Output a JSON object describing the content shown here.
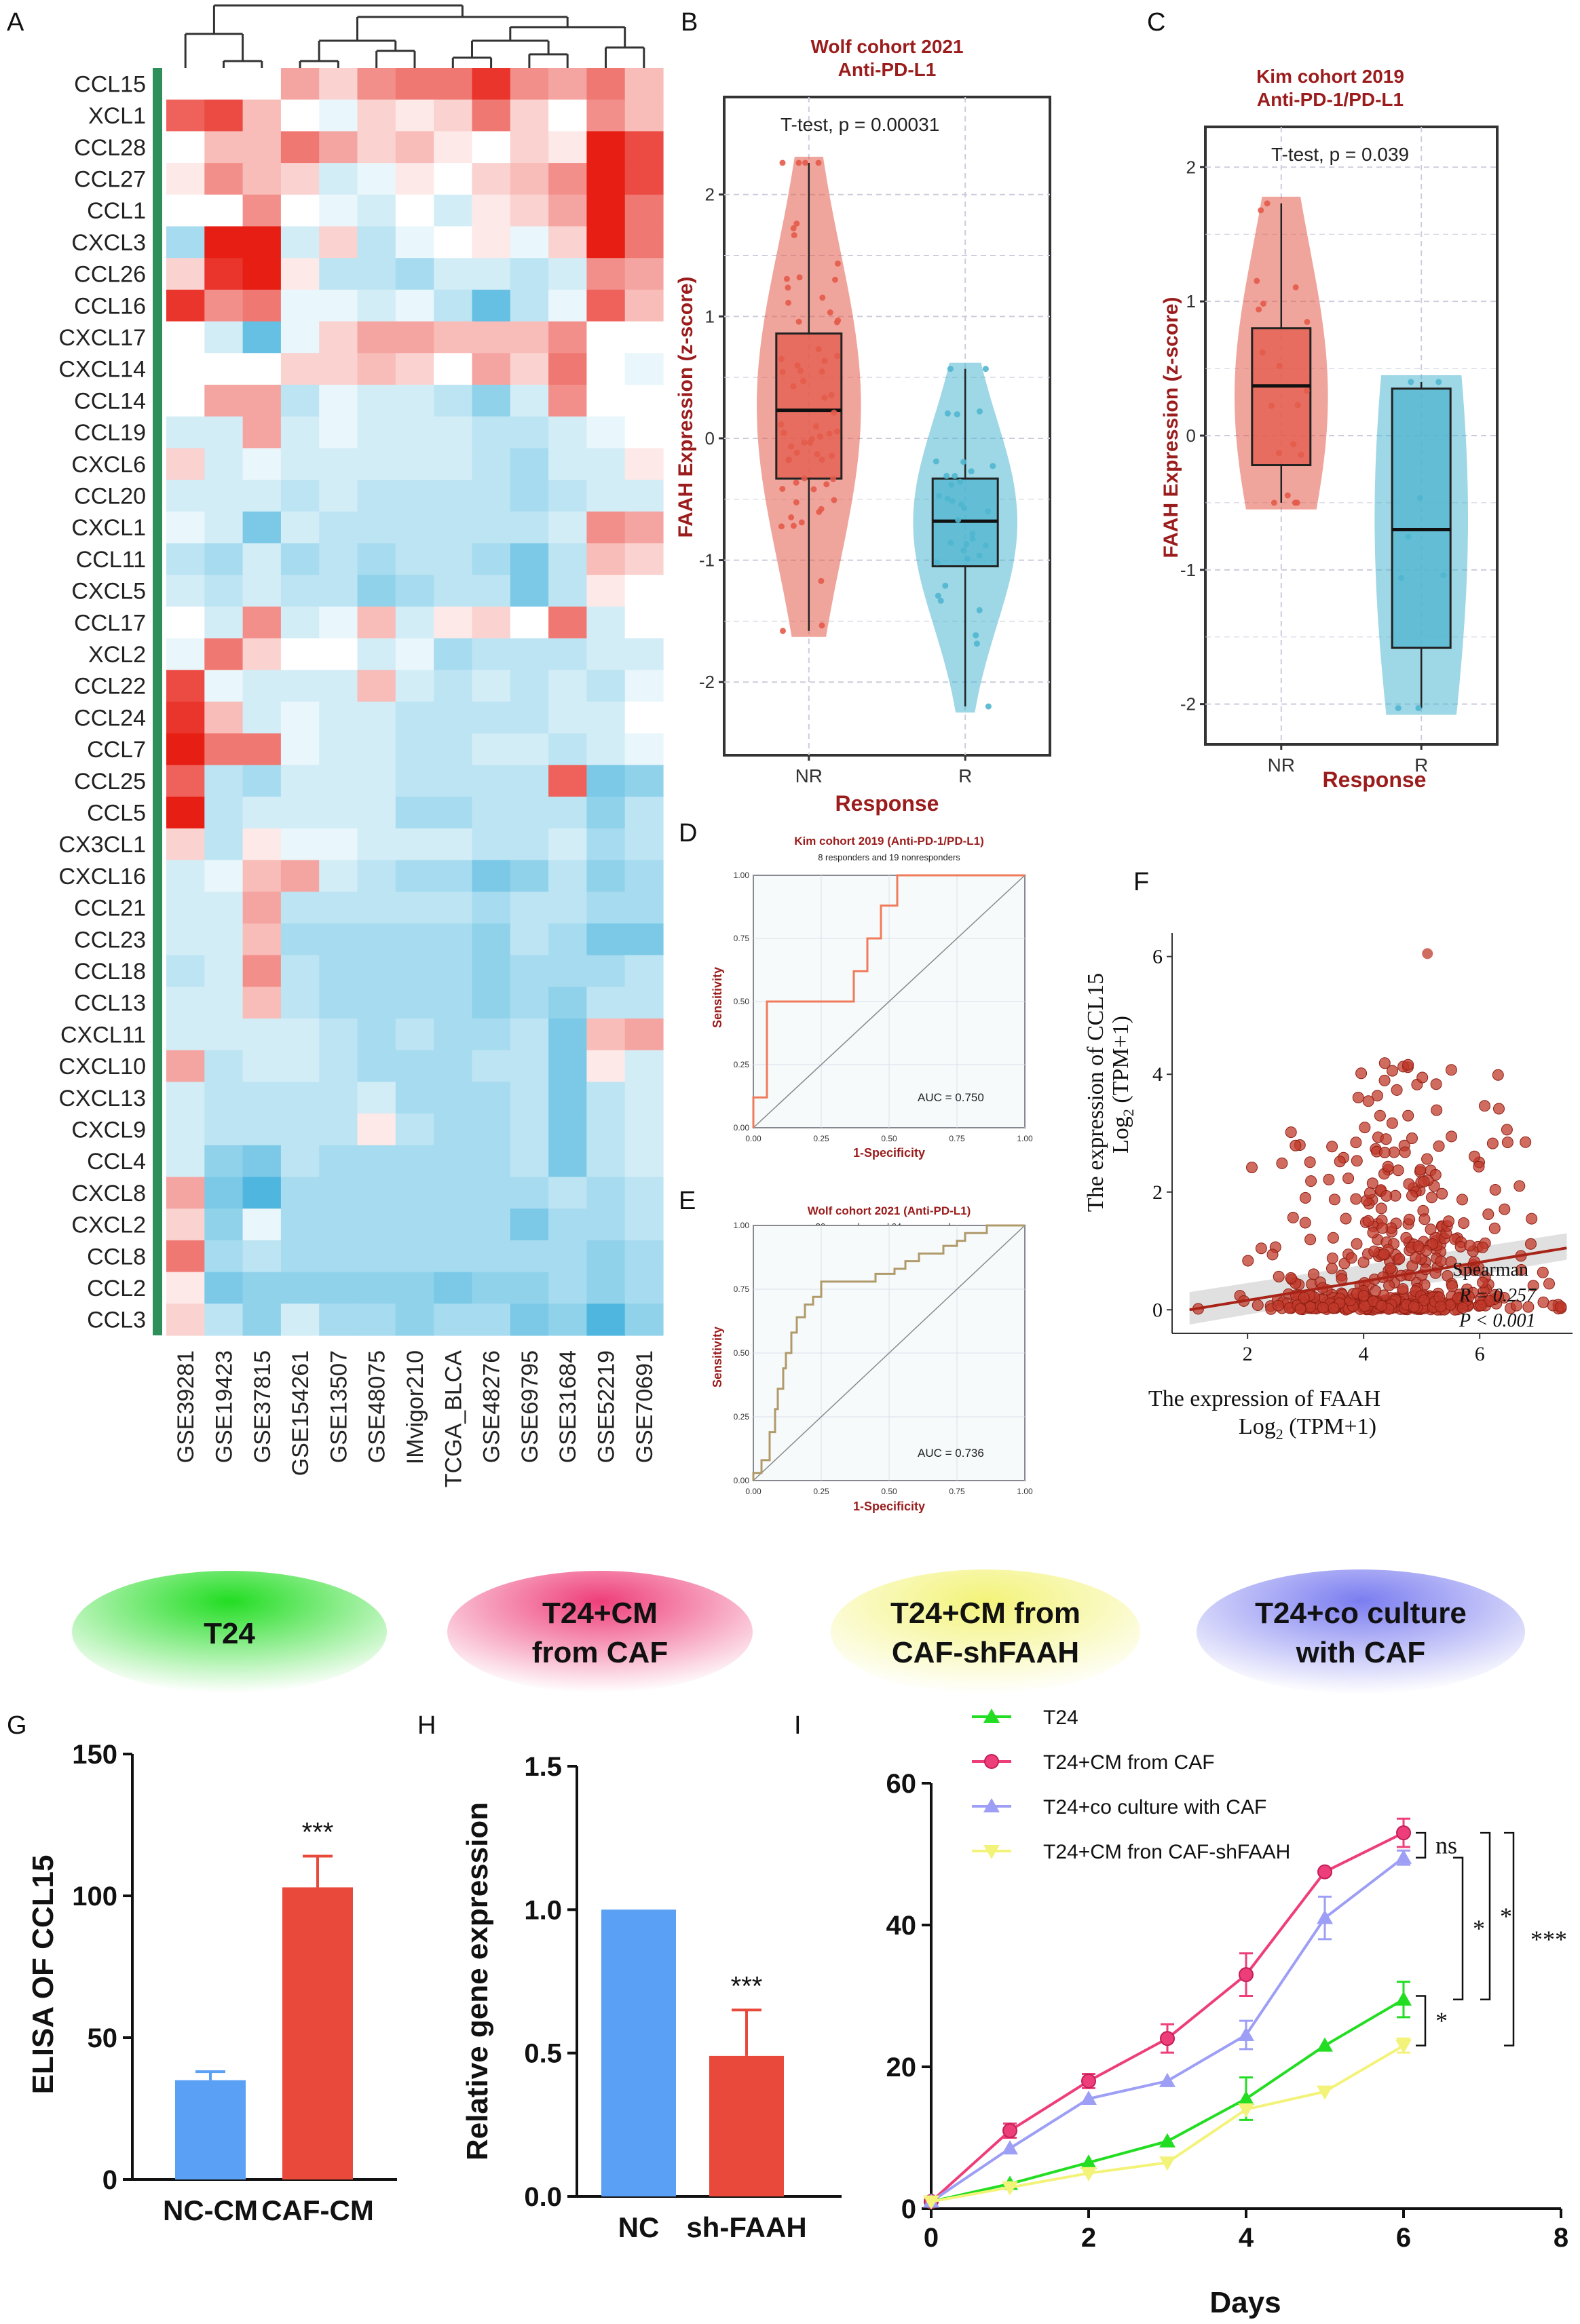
{
  "panel_letters": [
    "A",
    "B",
    "C",
    "D",
    "E",
    "F",
    "G",
    "H",
    "I"
  ],
  "colors": {
    "red": "#e8493a",
    "blue": "#5aa0f5",
    "dark_red": "#9b1c1c",
    "nr": "#e35b4b",
    "r": "#4fb6cf",
    "green": "#22dd22",
    "pink": "#ee3e7a",
    "lavender": "#9d9ef5",
    "yellow": "#f3f37a"
  },
  "heatmap": {
    "rows": [
      "CCL15",
      "XCL1",
      "CCL28",
      "CCL27",
      "CCL1",
      "CXCL3",
      "CCL26",
      "CCL16",
      "CXCL17",
      "CXCL14",
      "CCL14",
      "CCL19",
      "CXCL6",
      "CCL20",
      "CXCL1",
      "CCL11",
      "CXCL5",
      "CCL17",
      "XCL2",
      "CCL22",
      "CCL24",
      "CCL7",
      "CCL25",
      "CCL5",
      "CX3CL1",
      "CXCL16",
      "CCL21",
      "CCL23",
      "CCL18",
      "CCL13",
      "CXCL11",
      "CXCL10",
      "CXCL13",
      "CXCL9",
      "CCL4",
      "CXCL8",
      "CXCL2",
      "CCL8",
      "CCL2",
      "CCL3"
    ],
    "cols": [
      "GSE39281",
      "GSE19423",
      "GSE37815",
      "GSE154261",
      "GSE13507",
      "GSE48075",
      "IMvigor210",
      "TCGA_BLCA",
      "GSE48276",
      "GSE69795",
      "GSE31684",
      "GSE52219",
      "GSE70691"
    ],
    "values": [
      [
        0,
        0,
        0,
        0.4,
        0.2,
        0.5,
        0.6,
        0.6,
        0.9,
        0.5,
        0.4,
        0.6,
        0.3
      ],
      [
        0.7,
        0.8,
        0.3,
        0,
        -0.1,
        0.2,
        0.1,
        0.2,
        0.6,
        0.2,
        0,
        0.5,
        0.3
      ],
      [
        0,
        0.3,
        0.3,
        0.6,
        0.4,
        0.2,
        0.3,
        0.1,
        0,
        0.2,
        0.1,
        1,
        0.8
      ],
      [
        0.1,
        0.5,
        0.3,
        0.2,
        -0.2,
        -0.1,
        0.1,
        0,
        0.2,
        0.3,
        0.5,
        1,
        0.8
      ],
      [
        0,
        0,
        0.5,
        0,
        -0.1,
        -0.2,
        0,
        -0.2,
        0.1,
        0.2,
        0.4,
        1,
        0.6
      ],
      [
        -0.4,
        1,
        1,
        -0.2,
        0.2,
        -0.3,
        -0.1,
        0,
        0.1,
        -0.1,
        0.2,
        1,
        0.6
      ],
      [
        0.2,
        0.9,
        1,
        0.1,
        -0.3,
        -0.3,
        -0.4,
        -0.2,
        -0.2,
        -0.3,
        -0.2,
        0.5,
        0.4
      ],
      [
        0.9,
        0.5,
        0.6,
        -0.1,
        -0.1,
        -0.2,
        -0.1,
        -0.3,
        -0.7,
        -0.3,
        -0.1,
        0.7,
        0.3
      ],
      [
        0,
        -0.2,
        -0.7,
        -0.1,
        0.2,
        0.4,
        0.4,
        0.3,
        0.3,
        0.3,
        0.5,
        0,
        0
      ],
      [
        0,
        0,
        0,
        0.2,
        0.2,
        0.3,
        0.2,
        0,
        0.4,
        0.2,
        0.6,
        0,
        -0.1
      ],
      [
        0,
        0.4,
        0.4,
        -0.3,
        -0.1,
        -0.2,
        -0.2,
        -0.3,
        -0.5,
        -0.2,
        0.5,
        0,
        0
      ],
      [
        -0.2,
        -0.2,
        0.4,
        -0.2,
        -0.1,
        -0.2,
        -0.2,
        -0.2,
        -0.3,
        -0.3,
        -0.2,
        -0.1,
        0
      ],
      [
        0.2,
        -0.2,
        -0.1,
        -0.2,
        -0.2,
        -0.2,
        -0.2,
        -0.2,
        -0.3,
        -0.4,
        -0.2,
        -0.2,
        0.1
      ],
      [
        -0.2,
        -0.2,
        -0.2,
        -0.3,
        -0.2,
        -0.3,
        -0.3,
        -0.3,
        -0.3,
        -0.4,
        -0.3,
        -0.2,
        -0.2
      ],
      [
        -0.1,
        -0.2,
        -0.6,
        -0.2,
        -0.3,
        -0.3,
        -0.3,
        -0.3,
        -0.3,
        -0.3,
        -0.2,
        0.5,
        0.4
      ],
      [
        -0.3,
        -0.4,
        -0.2,
        -0.4,
        -0.3,
        -0.4,
        -0.3,
        -0.3,
        -0.4,
        -0.6,
        -0.3,
        0.3,
        0.2
      ],
      [
        -0.2,
        -0.3,
        -0.2,
        -0.3,
        -0.3,
        -0.5,
        -0.4,
        -0.3,
        -0.3,
        -0.6,
        -0.3,
        0.1,
        0
      ],
      [
        0,
        -0.2,
        0.5,
        -0.2,
        -0.1,
        0.3,
        -0.2,
        0.1,
        0.2,
        0,
        0.6,
        -0.2,
        0
      ],
      [
        -0.1,
        0.6,
        0.2,
        0,
        0,
        -0.2,
        -0.1,
        -0.4,
        -0.3,
        -0.3,
        -0.3,
        -0.2,
        -0.2
      ],
      [
        0.8,
        -0.1,
        -0.2,
        -0.2,
        -0.2,
        0.3,
        -0.2,
        -0.3,
        -0.2,
        -0.3,
        -0.2,
        -0.3,
        -0.1
      ],
      [
        0.9,
        0.3,
        -0.2,
        -0.1,
        -0.2,
        -0.2,
        -0.3,
        -0.3,
        -0.3,
        -0.3,
        -0.2,
        -0.2,
        0
      ],
      [
        1,
        0.6,
        0.6,
        -0.1,
        -0.2,
        -0.2,
        -0.3,
        -0.3,
        -0.2,
        -0.2,
        -0.3,
        -0.2,
        -0.1
      ],
      [
        0.7,
        -0.3,
        -0.4,
        -0.2,
        -0.2,
        -0.2,
        -0.3,
        -0.3,
        -0.3,
        -0.3,
        0.7,
        -0.6,
        -0.5
      ],
      [
        1,
        -0.3,
        -0.2,
        -0.2,
        -0.2,
        -0.2,
        -0.4,
        -0.4,
        -0.3,
        -0.3,
        -0.3,
        -0.5,
        -0.3
      ],
      [
        0.2,
        -0.3,
        0.1,
        -0.1,
        -0.1,
        -0.2,
        -0.2,
        -0.2,
        -0.3,
        -0.3,
        -0.2,
        -0.4,
        -0.3
      ],
      [
        -0.2,
        -0.1,
        0.3,
        0.4,
        -0.2,
        -0.3,
        -0.4,
        -0.4,
        -0.6,
        -0.5,
        -0.3,
        -0.5,
        -0.4
      ],
      [
        -0.2,
        -0.2,
        0.4,
        -0.3,
        -0.3,
        -0.3,
        -0.3,
        -0.3,
        -0.4,
        -0.3,
        -0.3,
        -0.4,
        -0.4
      ],
      [
        -0.2,
        -0.2,
        0.3,
        -0.4,
        -0.4,
        -0.4,
        -0.4,
        -0.4,
        -0.5,
        -0.3,
        -0.4,
        -0.6,
        -0.6
      ],
      [
        -0.3,
        -0.2,
        0.5,
        -0.3,
        -0.4,
        -0.4,
        -0.4,
        -0.4,
        -0.5,
        -0.4,
        -0.4,
        -0.4,
        -0.3
      ],
      [
        -0.2,
        -0.2,
        0.3,
        -0.3,
        -0.4,
        -0.4,
        -0.4,
        -0.4,
        -0.5,
        -0.4,
        -0.5,
        -0.3,
        -0.3
      ],
      [
        -0.2,
        -0.2,
        -0.2,
        -0.2,
        -0.3,
        -0.4,
        -0.3,
        -0.4,
        -0.4,
        -0.3,
        -0.6,
        0.3,
        0.4
      ],
      [
        0.4,
        -0.3,
        -0.2,
        -0.2,
        -0.3,
        -0.4,
        -0.4,
        -0.4,
        -0.3,
        -0.3,
        -0.6,
        0.1,
        -0.2
      ],
      [
        -0.2,
        -0.3,
        -0.3,
        -0.3,
        -0.3,
        -0.2,
        -0.4,
        -0.4,
        -0.4,
        -0.3,
        -0.6,
        -0.3,
        -0.2
      ],
      [
        -0.2,
        -0.3,
        -0.3,
        -0.3,
        -0.3,
        0.1,
        -0.3,
        -0.4,
        -0.4,
        -0.3,
        -0.6,
        -0.3,
        -0.2
      ],
      [
        -0.2,
        -0.5,
        -0.6,
        -0.3,
        -0.4,
        -0.4,
        -0.4,
        -0.4,
        -0.4,
        -0.3,
        -0.6,
        -0.3,
        -0.2
      ],
      [
        0.4,
        -0.6,
        -0.8,
        -0.4,
        -0.4,
        -0.4,
        -0.4,
        -0.4,
        -0.4,
        -0.4,
        -0.3,
        -0.4,
        -0.3
      ],
      [
        0.2,
        -0.5,
        -0.1,
        -0.4,
        -0.4,
        -0.4,
        -0.4,
        -0.4,
        -0.4,
        -0.6,
        -0.4,
        -0.4,
        -0.3
      ],
      [
        0.6,
        -0.4,
        -0.3,
        -0.4,
        -0.4,
        -0.4,
        -0.4,
        -0.4,
        -0.4,
        -0.4,
        -0.4,
        -0.5,
        -0.4
      ],
      [
        0.1,
        -0.6,
        -0.5,
        -0.5,
        -0.5,
        -0.5,
        -0.5,
        -0.6,
        -0.5,
        -0.5,
        -0.4,
        -0.5,
        -0.4
      ],
      [
        0.2,
        -0.3,
        -0.5,
        -0.2,
        -0.4,
        -0.4,
        -0.5,
        -0.4,
        -0.4,
        -0.6,
        -0.5,
        -0.8,
        -0.5
      ]
    ]
  },
  "chart_data": [
    {
      "id": "B",
      "type": "box-violin",
      "title": "Wolf cohort 2021",
      "subtitle": "Anti-PD-L1",
      "xlabel": "Response",
      "ylabel": "FAAH Expression (z-score)",
      "annotation": "T-test, p = 0.00031",
      "categories": [
        "NR",
        "R"
      ],
      "ylim": [
        -2.6,
        2.8
      ],
      "yticks": [
        "2",
        "1",
        "0",
        "-1",
        "-2"
      ],
      "boxes": [
        {
          "name": "NR",
          "q1": -0.33,
          "median": 0.23,
          "q3": 0.86,
          "min": -1.58,
          "max": 2.26
        },
        {
          "name": "R",
          "q1": -1.05,
          "median": -0.68,
          "q3": -0.33,
          "min": -2.2,
          "max": 0.57
        }
      ]
    },
    {
      "id": "C",
      "type": "box-violin",
      "title": "Kim cohort 2019",
      "subtitle": "Anti-PD-1/PD-L1",
      "xlabel": "Response",
      "ylabel": "FAAH Expression (z-score)",
      "annotation": "T-test, p = 0.039",
      "categories": [
        "NR",
        "R"
      ],
      "ylim": [
        -2.3,
        2.3
      ],
      "yticks": [
        "2",
        "1",
        "0",
        "-1",
        "-2"
      ],
      "boxes": [
        {
          "name": "NR",
          "q1": -0.22,
          "median": 0.37,
          "q3": 0.8,
          "min": -0.5,
          "max": 1.73
        },
        {
          "name": "R",
          "q1": -1.58,
          "median": -0.7,
          "q3": 0.35,
          "min": -2.03,
          "max": 0.4
        }
      ]
    },
    {
      "id": "D",
      "type": "line",
      "title": "Kim cohort 2019 (Anti-PD-1/PD-L1)",
      "subtitle": "8 responders and 19 nonresponders",
      "xlabel": "1-Specificity",
      "ylabel": "Sensitivity",
      "annotation": "AUC = 0.750",
      "xticks": [
        "0.00",
        "0.25",
        "0.50",
        "0.75",
        "1.00"
      ],
      "yticks": [
        "0.00",
        "0.25",
        "0.50",
        "0.75",
        "1.00"
      ],
      "x": [
        0,
        0,
        0.05,
        0.05,
        0.37,
        0.37,
        0.42,
        0.42,
        0.47,
        0.47,
        0.53,
        0.53,
        1
      ],
      "y": [
        0,
        0.12,
        0.12,
        0.5,
        0.5,
        0.62,
        0.62,
        0.75,
        0.75,
        0.88,
        0.88,
        1,
        1
      ]
    },
    {
      "id": "E",
      "type": "line",
      "title": "Wolf cohort 2021 (Anti-PD-L1)",
      "subtitle": "36 responders and 64 nonresponders",
      "xlabel": "1-Specificity",
      "ylabel": "Sensitivity",
      "annotation": "AUC = 0.736",
      "xticks": [
        "0.00",
        "0.25",
        "0.50",
        "0.75",
        "1.00"
      ],
      "yticks": [
        "0.00",
        "0.25",
        "0.50",
        "0.75",
        "1.00"
      ],
      "x": [
        0,
        0,
        0.03,
        0.03,
        0.06,
        0.06,
        0.08,
        0.08,
        0.09,
        0.09,
        0.11,
        0.11,
        0.12,
        0.12,
        0.14,
        0.14,
        0.16,
        0.16,
        0.19,
        0.19,
        0.22,
        0.22,
        0.25,
        0.25,
        0.45,
        0.45,
        0.52,
        0.52,
        0.56,
        0.56,
        0.61,
        0.61,
        0.7,
        0.7,
        0.75,
        0.75,
        0.78,
        0.78,
        0.8,
        0.8,
        0.86,
        0.86,
        1
      ],
      "y": [
        0,
        0.03,
        0.03,
        0.08,
        0.08,
        0.19,
        0.19,
        0.28,
        0.28,
        0.36,
        0.36,
        0.44,
        0.44,
        0.5,
        0.5,
        0.58,
        0.58,
        0.64,
        0.64,
        0.69,
        0.69,
        0.72,
        0.72,
        0.78,
        0.78,
        0.81,
        0.81,
        0.83,
        0.83,
        0.86,
        0.86,
        0.89,
        0.89,
        0.92,
        0.92,
        0.94,
        0.94,
        0.97,
        0.97,
        0.97,
        0.97,
        1,
        1
      ]
    },
    {
      "id": "F",
      "type": "scatter",
      "xlabel": "The  expression   of FAAH",
      "xlabel_sub": "Log",
      "xlabel_sub2": "2",
      "xlabel_sub3": " (TPM+1)",
      "ylabel": "The  expression   of CCL15",
      "ylabel2": "Log",
      "ylabel2_sub": "2",
      "ylabel2_tail": " (TPM+1)",
      "xlim": [
        0.7,
        7.6
      ],
      "ylim": [
        -0.4,
        6.4
      ],
      "xticks": [
        2,
        4,
        6
      ],
      "yticks": [
        0,
        2,
        4,
        6
      ],
      "legend_method": "Spearman",
      "legend_r": "R = 0.257",
      "legend_p": "P < 0.001",
      "fit": {
        "x": [
          1,
          7.5
        ],
        "y": [
          0,
          1.05
        ]
      }
    },
    {
      "id": "G",
      "type": "bar",
      "ylabel": "ELISA OF CCL15",
      "categories": [
        "NC-CM",
        "CAF-CM"
      ],
      "values": [
        35,
        103
      ],
      "errors": [
        3,
        11
      ],
      "ylim": [
        0,
        150
      ],
      "yticks": [
        "0",
        "50",
        "100",
        "150"
      ],
      "significance": "***"
    },
    {
      "id": "H",
      "type": "bar",
      "ylabel": "Relative gene expression",
      "categories": [
        "NC",
        "sh-FAAH"
      ],
      "values": [
        1.0,
        0.49
      ],
      "errors": [
        0,
        0.16
      ],
      "ylim": [
        0,
        1.5
      ],
      "yticks": [
        "0.0",
        "0.5",
        "1.0",
        "1.5"
      ],
      "significance": "***"
    },
    {
      "id": "I",
      "type": "line",
      "xlabel": "Days",
      "xlim": [
        0,
        8
      ],
      "ylim": [
        0,
        60
      ],
      "xticks": [
        "0",
        "2",
        "4",
        "6",
        "8"
      ],
      "yticks": [
        "0",
        "20",
        "40",
        "60"
      ],
      "x": [
        0,
        1,
        2,
        3,
        4,
        5,
        6
      ],
      "series": [
        {
          "name": "T24",
          "values": [
            1,
            3.5,
            6.5,
            9.5,
            15.5,
            23,
            29.5
          ],
          "errors": [
            0,
            0,
            0,
            0,
            3,
            0,
            2.5
          ]
        },
        {
          "name": "T24+CM from CAF",
          "values": [
            1,
            11,
            18,
            24,
            33,
            47.5,
            53
          ],
          "errors": [
            0,
            1,
            1,
            2,
            3,
            0,
            2
          ]
        },
        {
          "name": "T24+co culture with CAF",
          "values": [
            1,
            8.5,
            15.5,
            18,
            24.5,
            41,
            49.5
          ],
          "errors": [
            0,
            0,
            0,
            0,
            2,
            3,
            1
          ]
        },
        {
          "name": "T24+CM fron CAF-shFAAH",
          "values": [
            1,
            3,
            5,
            6.5,
            14,
            16.5,
            23
          ],
          "errors": [
            0,
            0,
            0,
            0,
            0,
            0,
            1
          ]
        }
      ],
      "brackets": [
        {
          "label": "ns"
        },
        {
          "label": "*"
        },
        {
          "label": "*"
        },
        {
          "label": "***"
        },
        {
          "label": "*"
        }
      ]
    }
  ],
  "groups": [
    {
      "label1": "T24",
      "label2": ""
    },
    {
      "label1": "T24+CM",
      "label2": "from CAF"
    },
    {
      "label1": "T24+CM from",
      "label2": "CAF-shFAAH"
    },
    {
      "label1": "T24+co culture",
      "label2": "with CAF"
    }
  ]
}
